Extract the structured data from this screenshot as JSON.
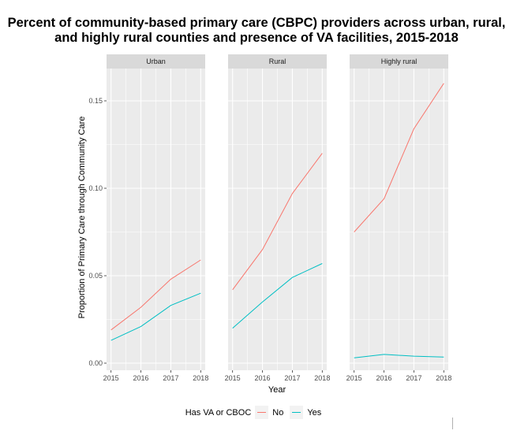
{
  "chart_data": {
    "type": "line",
    "title_line1": "Percent of community-based primary care (CBPC) providers across urban, rural,",
    "title_line2": "and highly rural counties and presence of VA facilities, 2015-2018",
    "xlabel": "Year",
    "ylabel": "Proportion of Primary Care through Community Care",
    "x": [
      2015,
      2016,
      2017,
      2018
    ],
    "x_tick_labels": [
      "2015",
      "2016",
      "2017",
      "2018"
    ],
    "ylim": [
      -0.005,
      0.168
    ],
    "y_ticks": [
      0.0,
      0.05,
      0.1,
      0.15
    ],
    "y_tick_labels": [
      "0.00",
      "0.05",
      "0.10",
      "0.15"
    ],
    "grid": true,
    "legend": {
      "title": "Has VA or CBOC",
      "placement": "bottom",
      "entries": [
        {
          "name": "No",
          "color": "#F8766D"
        },
        {
          "name": "Yes",
          "color": "#00BFC4"
        }
      ]
    },
    "facets": [
      {
        "label": "Urban",
        "series": [
          {
            "name": "No",
            "values": [
              0.019,
              0.032,
              0.048,
              0.059
            ]
          },
          {
            "name": "Yes",
            "values": [
              0.013,
              0.021,
              0.033,
              0.04
            ]
          }
        ]
      },
      {
        "label": "Rural",
        "series": [
          {
            "name": "No",
            "values": [
              0.042,
              0.065,
              0.097,
              0.12
            ]
          },
          {
            "name": "Yes",
            "values": [
              0.02,
              0.035,
              0.049,
              0.057
            ]
          }
        ]
      },
      {
        "label": "Highly rural",
        "series": [
          {
            "name": "No",
            "values": [
              0.075,
              0.094,
              0.134,
              0.16
            ]
          },
          {
            "name": "Yes",
            "values": [
              0.003,
              0.005,
              0.004,
              0.0035
            ]
          }
        ]
      }
    ]
  }
}
